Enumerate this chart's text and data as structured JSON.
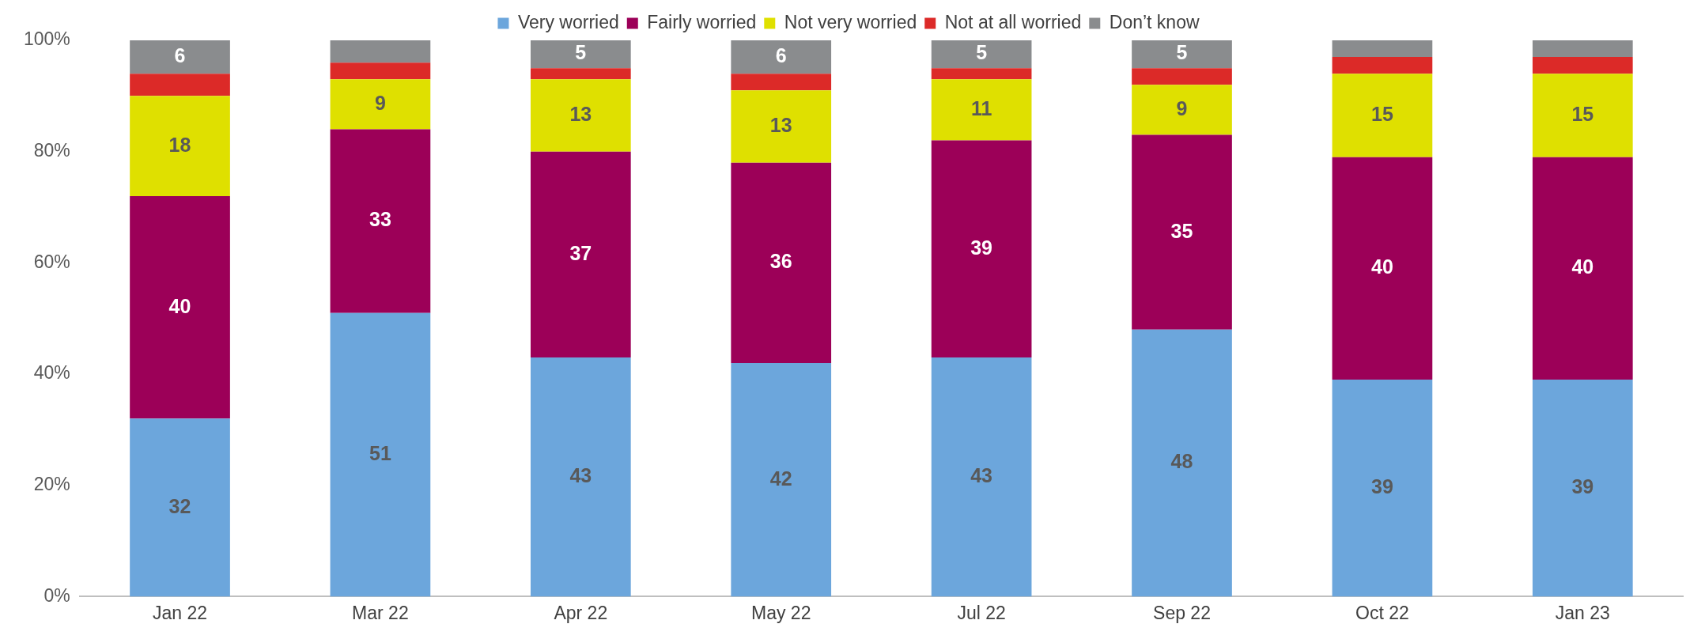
{
  "chart_data": {
    "type": "bar",
    "stacked": true,
    "categories": [
      "Jan 22",
      "Mar 22",
      "Apr 22",
      "May 22",
      "Jul 22",
      "Sep 22",
      "Oct 22",
      "Jan 23"
    ],
    "series": [
      {
        "name": "Very worried",
        "color": "#6ca6dc",
        "values": [
          32,
          51,
          43,
          42,
          43,
          48,
          39,
          39
        ],
        "value_labels": [
          "32",
          "51",
          "43",
          "42",
          "43",
          "48",
          "39",
          "39"
        ]
      },
      {
        "name": "Fairly worried",
        "color": "#9c0058",
        "values": [
          40,
          33,
          37,
          36,
          39,
          35,
          40,
          40
        ],
        "value_labels": [
          "40",
          "33",
          "37",
          "36",
          "39",
          "35",
          "40",
          "40"
        ]
      },
      {
        "name": "Not very worried",
        "color": "#dfe000",
        "values": [
          18,
          9,
          13,
          13,
          11,
          9,
          15,
          15
        ],
        "value_labels": [
          "18",
          "9",
          "13",
          "13",
          "11",
          "9",
          "15",
          "15"
        ]
      },
      {
        "name": "Not at all worried",
        "color": "#dc2a28",
        "values": [
          4,
          3,
          2,
          3,
          2,
          3,
          3,
          3
        ],
        "value_labels": [
          null,
          null,
          null,
          null,
          null,
          null,
          null,
          null
        ]
      },
      {
        "name": "Don’t know",
        "color": "#8a8c8e",
        "values": [
          6,
          4,
          5,
          6,
          5,
          5,
          3,
          3
        ],
        "value_labels": [
          "6",
          null,
          "5",
          "6",
          "5",
          "5",
          null,
          null
        ]
      }
    ],
    "ylim": [
      0,
      100
    ],
    "yticks": [
      {
        "value": 0,
        "label": "0%"
      },
      {
        "value": 20,
        "label": "20%"
      },
      {
        "value": 40,
        "label": "40%"
      },
      {
        "value": 60,
        "label": "60%"
      },
      {
        "value": 80,
        "label": "80%"
      },
      {
        "value": 100,
        "label": "100%"
      }
    ],
    "grid": false,
    "legend": "top"
  }
}
